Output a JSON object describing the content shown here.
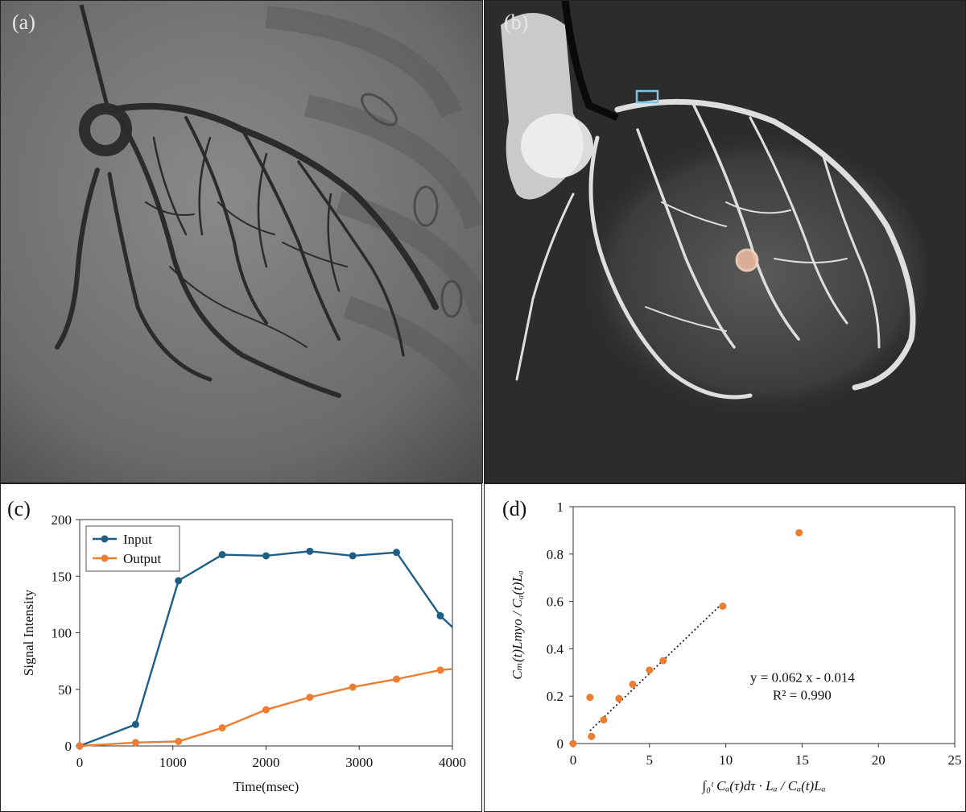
{
  "panels": {
    "a": {
      "label": "(a)"
    },
    "b": {
      "label": "(b)"
    }
  },
  "chart_data": [
    {
      "panel": "(c)",
      "type": "line",
      "xlabel": "Time(msec)",
      "ylabel": "Signal Intensity",
      "xlim": [
        0,
        4000
      ],
      "ylim": [
        0,
        200
      ],
      "xticks": [
        0,
        1000,
        2000,
        3000,
        4000
      ],
      "yticks": [
        0,
        50,
        100,
        150,
        200
      ],
      "legend": "top-left",
      "grid": false,
      "series": [
        {
          "name": "Input",
          "color": "#1f5f86",
          "x": [
            0,
            600,
            1060,
            1530,
            2000,
            2470,
            2930,
            3400,
            3870,
            4000
          ],
          "y": [
            0,
            19,
            146,
            169,
            168,
            172,
            168,
            171,
            115,
            105
          ]
        },
        {
          "name": "Output",
          "color": "#ed7d31",
          "x": [
            0,
            600,
            1060,
            1530,
            2000,
            2470,
            2930,
            3400,
            3870,
            4000
          ],
          "y": [
            0,
            3,
            4,
            16,
            32,
            43,
            52,
            59,
            67,
            68
          ]
        }
      ]
    },
    {
      "panel": "(d)",
      "type": "scatter",
      "xlabel": "∫₀ᵗ Cₐ(τ)dτ · Lₐ / Cₐ(t)Lₐ",
      "ylabel": "Cₘ(t)Lmyo / Cₐ(t)Lₐ",
      "xlim": [
        0,
        25
      ],
      "ylim": [
        0,
        1
      ],
      "xticks": [
        0,
        5,
        10,
        15,
        20,
        25
      ],
      "yticks": [
        0,
        0.2,
        0.4,
        0.6,
        0.8,
        1
      ],
      "xticklabels": [
        "0",
        "5",
        "10",
        "15",
        "20",
        "25"
      ],
      "yticklabels": [
        "0",
        "0.2",
        "0.4",
        "0.6",
        "0.8",
        "1"
      ],
      "grid": false,
      "color": "#ed7d31",
      "points": [
        {
          "x": 0,
          "y": 0
        },
        {
          "x": 1.1,
          "y": 0.195
        },
        {
          "x": 1.2,
          "y": 0.03
        },
        {
          "x": 2.0,
          "y": 0.1
        },
        {
          "x": 3.0,
          "y": 0.19
        },
        {
          "x": 3.9,
          "y": 0.25
        },
        {
          "x": 5.0,
          "y": 0.31
        },
        {
          "x": 5.9,
          "y": 0.35
        },
        {
          "x": 9.8,
          "y": 0.58
        },
        {
          "x": 14.8,
          "y": 0.89
        }
      ],
      "trendline": {
        "slope": 0.062,
        "intercept": -0.014,
        "x_range": [
          1.1,
          9.8
        ]
      },
      "annotation": [
        "y = 0.062  x - 0.014",
        "R² = 0.990"
      ]
    }
  ]
}
